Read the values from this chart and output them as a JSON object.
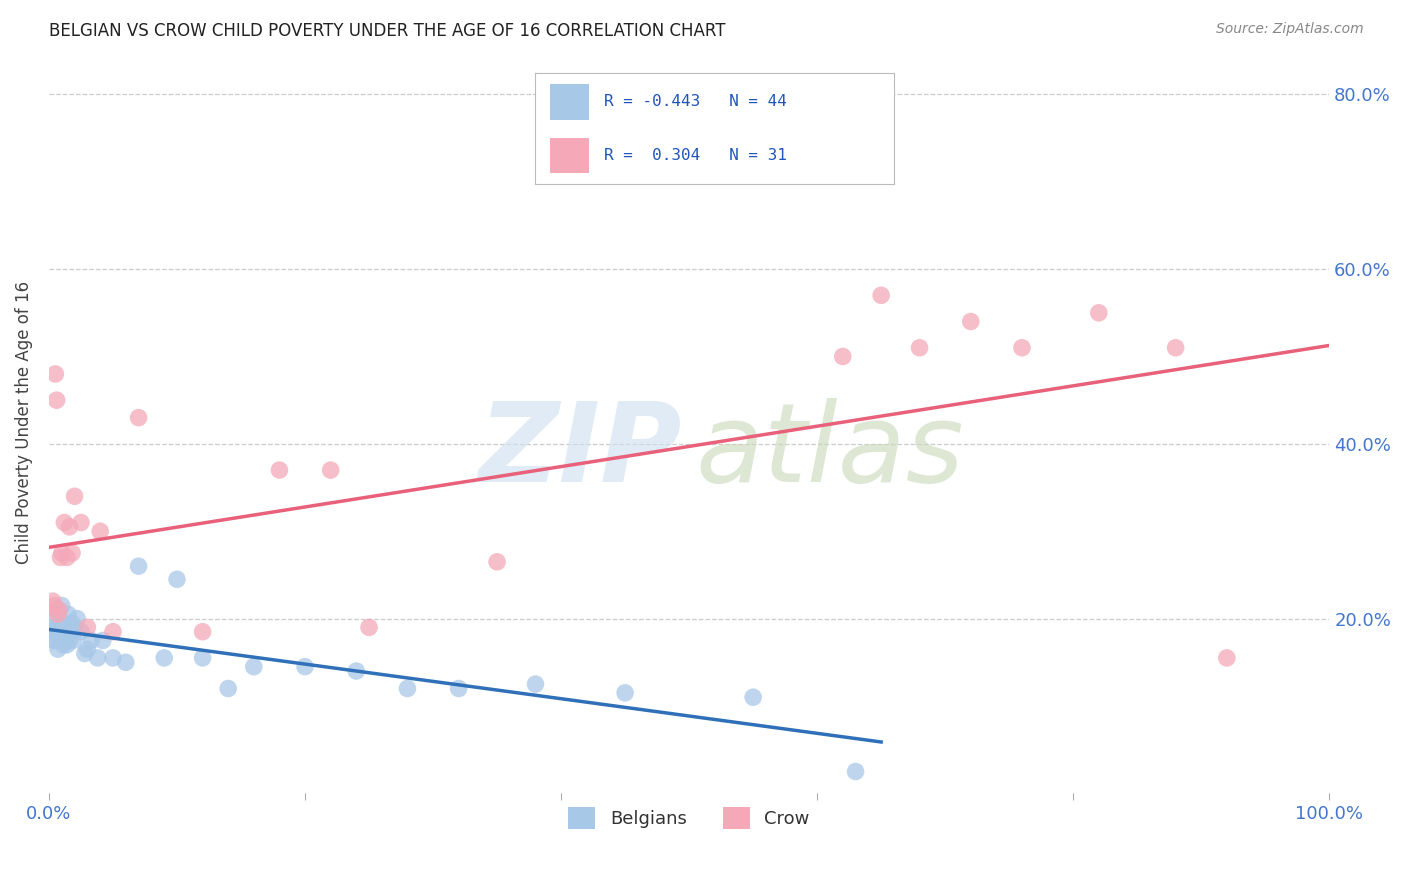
{
  "title": "BELGIAN VS CROW CHILD POVERTY UNDER THE AGE OF 16 CORRELATION CHART",
  "source": "Source: ZipAtlas.com",
  "ylabel": "Child Poverty Under the Age of 16",
  "xlim": [
    0,
    1.0
  ],
  "ylim": [
    0,
    0.85
  ],
  "xtick_positions": [
    0.0,
    0.2,
    0.4,
    0.6,
    0.8,
    1.0
  ],
  "xticklabels": [
    "0.0%",
    "",
    "",
    "",
    "",
    "100.0%"
  ],
  "ytick_positions": [
    0.2,
    0.4,
    0.6,
    0.8
  ],
  "yticklabels_right": [
    "20.0%",
    "40.0%",
    "60.0%",
    "80.0%"
  ],
  "color_belgian": "#a8c8e8",
  "color_crow": "#f4a8b8",
  "line_color_belgian": "#3070b8",
  "line_color_crow": "#e8607a",
  "tick_color": "#4477cc",
  "background_color": "#ffffff",
  "grid_color": "#cccccc",
  "belgian_x": [
    0.002,
    0.003,
    0.004,
    0.005,
    0.005,
    0.006,
    0.007,
    0.007,
    0.008,
    0.009,
    0.01,
    0.011,
    0.012,
    0.013,
    0.014,
    0.015,
    0.016,
    0.017,
    0.018,
    0.019,
    0.02,
    0.022,
    0.025,
    0.028,
    0.03,
    0.033,
    0.038,
    0.042,
    0.05,
    0.06,
    0.07,
    0.09,
    0.1,
    0.12,
    0.14,
    0.16,
    0.2,
    0.24,
    0.28,
    0.32,
    0.38,
    0.45,
    0.55,
    0.63
  ],
  "belgian_y": [
    0.19,
    0.2,
    0.175,
    0.185,
    0.175,
    0.21,
    0.185,
    0.165,
    0.19,
    0.18,
    0.215,
    0.17,
    0.195,
    0.175,
    0.17,
    0.205,
    0.175,
    0.185,
    0.195,
    0.175,
    0.19,
    0.2,
    0.185,
    0.16,
    0.165,
    0.175,
    0.155,
    0.175,
    0.155,
    0.15,
    0.26,
    0.155,
    0.245,
    0.155,
    0.12,
    0.145,
    0.145,
    0.14,
    0.12,
    0.12,
    0.125,
    0.115,
    0.11,
    0.025
  ],
  "crow_x": [
    0.003,
    0.004,
    0.005,
    0.006,
    0.007,
    0.008,
    0.009,
    0.01,
    0.012,
    0.014,
    0.016,
    0.018,
    0.02,
    0.025,
    0.03,
    0.04,
    0.05,
    0.07,
    0.12,
    0.18,
    0.22,
    0.25,
    0.35,
    0.62,
    0.65,
    0.68,
    0.72,
    0.76,
    0.82,
    0.88,
    0.92
  ],
  "crow_y": [
    0.22,
    0.215,
    0.48,
    0.45,
    0.205,
    0.21,
    0.27,
    0.275,
    0.31,
    0.27,
    0.305,
    0.275,
    0.34,
    0.31,
    0.19,
    0.3,
    0.185,
    0.43,
    0.185,
    0.37,
    0.37,
    0.19,
    0.265,
    0.5,
    0.57,
    0.51,
    0.54,
    0.51,
    0.55,
    0.51,
    0.155
  ]
}
